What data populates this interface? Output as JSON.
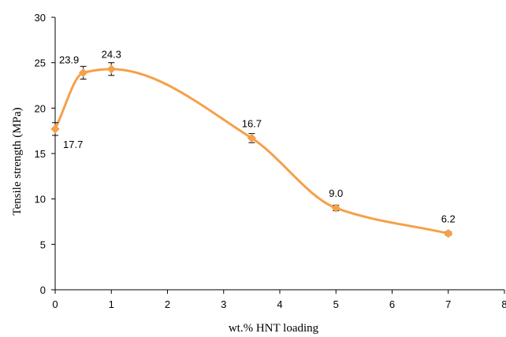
{
  "chart_data": {
    "type": "line",
    "title": "",
    "xlabel": "wt.% HNT loading",
    "ylabel": "Tensile strength (MPa)",
    "xlim": [
      0,
      8
    ],
    "ylim": [
      0,
      30
    ],
    "xticks": [
      "0",
      "1",
      "2",
      "3",
      "4",
      "5",
      "6",
      "7",
      "8"
    ],
    "yticks": [
      "0",
      "5",
      "10",
      "15",
      "20",
      "25",
      "30"
    ],
    "grid": false,
    "legend": "none",
    "smooth": true,
    "marker": "diamond",
    "color": "#f5a04a",
    "series": [
      {
        "x": [
          0,
          0.5,
          1,
          3.5,
          5,
          7
        ],
        "y": [
          17.7,
          23.9,
          24.3,
          16.7,
          9.0,
          6.2
        ],
        "error": [
          0.7,
          0.7,
          0.7,
          0.5,
          0.3,
          0.2
        ],
        "labels": [
          "17.7",
          "23.9",
          "24.3",
          "16.7",
          "9.0",
          "6.2"
        ]
      }
    ]
  }
}
